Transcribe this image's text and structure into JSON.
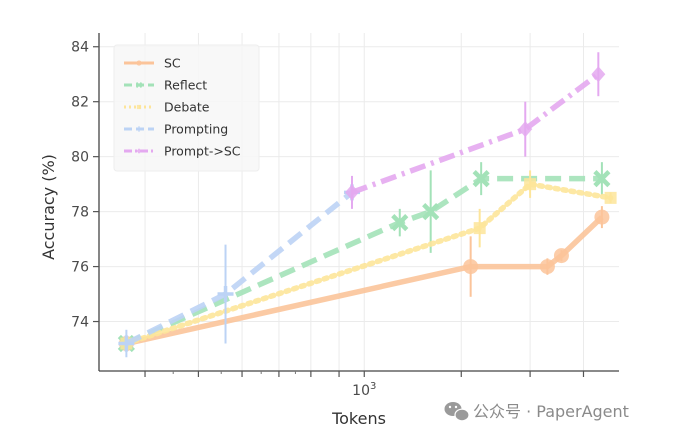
{
  "chart_data": {
    "type": "line",
    "xlabel": "Tokens",
    "ylabel": "Accuracy (%)",
    "xscale": "log",
    "xlim": [
      330,
      2900
    ],
    "ylim": [
      72.2,
      84.5
    ],
    "x_tick_labels": [
      {
        "value": 1000,
        "text": "10³"
      }
    ],
    "y_ticks": [
      74,
      76,
      78,
      80,
      82,
      84
    ],
    "grid": true,
    "legend_position": "top-left",
    "series": [
      {
        "name": "SC",
        "color": "#fbc49a",
        "style": "solid",
        "marker": "circle",
        "points": [
          [
            370,
            73.2
          ],
          [
            1560,
            76.0
          ],
          [
            2150,
            76.0
          ],
          [
            2280,
            76.4
          ],
          [
            2700,
            77.8
          ]
        ],
        "errors": [
          0.3,
          1.1,
          0.3,
          0.2,
          0.4
        ]
      },
      {
        "name": "Reflect",
        "color": "#a3e2b8",
        "style": "dashed",
        "marker": "x",
        "points": [
          [
            370,
            73.2
          ],
          [
            1160,
            77.6
          ],
          [
            1320,
            78.0
          ],
          [
            1630,
            79.2
          ],
          [
            2700,
            79.2
          ]
        ],
        "errors": [
          0.3,
          0.5,
          1.5,
          0.6,
          0.6
        ]
      },
      {
        "name": "Debate",
        "color": "#fde59a",
        "style": "dotted",
        "marker": "square",
        "points": [
          [
            370,
            73.2
          ],
          [
            1620,
            77.4
          ],
          [
            2000,
            79.0
          ],
          [
            2800,
            78.5
          ]
        ],
        "errors": [
          0.3,
          0.7,
          0.5,
          0.2
        ]
      },
      {
        "name": "Prompting",
        "color": "#bcd3f5",
        "style": "dashed",
        "marker": "plus",
        "points": [
          [
            370,
            73.2
          ],
          [
            560,
            75.0
          ],
          [
            950,
            78.7
          ]
        ],
        "errors": [
          0.5,
          1.8,
          0.4
        ]
      },
      {
        "name": "Prompt->SC",
        "color": "#e4a9f0",
        "style": "dashdot",
        "marker": "diamond",
        "points": [
          [
            950,
            78.7
          ],
          [
            1960,
            81.0
          ],
          [
            2660,
            83.0
          ]
        ],
        "errors": [
          0.6,
          1.0,
          0.8
        ]
      }
    ]
  },
  "watermark": {
    "icon": "wechat-icon",
    "text": "公众号 · PaperAgent"
  }
}
